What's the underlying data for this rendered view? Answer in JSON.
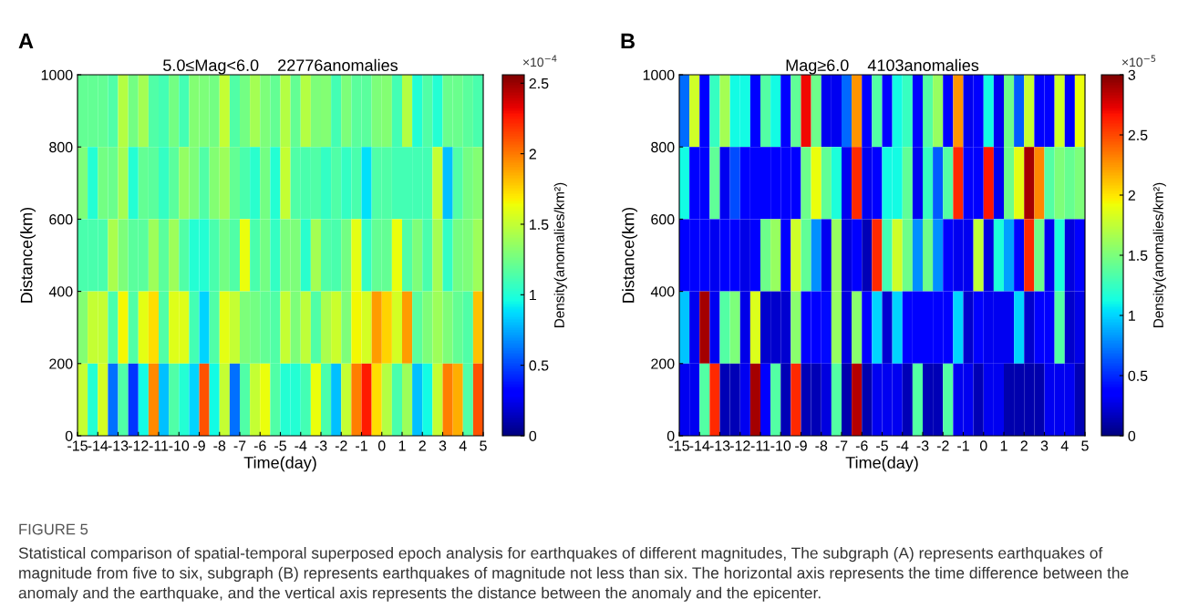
{
  "chart_data": [
    {
      "type": "heatmap",
      "title": "5.0≤Mag<6.0    22776anomalies",
      "xlabel": "Time(day)",
      "ylabel": "Distance(km)",
      "clabel": "Density(anomalies/km²)",
      "annotations": [
        "A",
        "×10$^{−4}$"
      ],
      "x": [
        -14.75,
        -14.25,
        -13.75,
        -13.25,
        -12.75,
        -12.25,
        -11.75,
        -11.25,
        -10.75,
        -10.25,
        -9.75,
        -9.25,
        -8.75,
        -8.25,
        -7.75,
        -7.25,
        -6.75,
        -6.25,
        -5.75,
        -5.25,
        -4.75,
        -4.25,
        -3.75,
        -3.25,
        -2.75,
        -2.25,
        -1.75,
        -1.25,
        -0.75,
        -0.25,
        0.25,
        0.75,
        1.25,
        1.75,
        2.25,
        2.75,
        3.25,
        3.75,
        4.25,
        4.75
      ],
      "xlim": [
        -15,
        5
      ],
      "xticks": [
        -15,
        -14,
        -13,
        -12,
        -11,
        -10,
        -9,
        -8,
        -7,
        -6,
        -5,
        -4,
        -3,
        -2,
        -1,
        0,
        1,
        2,
        3,
        4,
        5
      ],
      "ylim": [
        0,
        1000
      ],
      "yticks": [
        0,
        200,
        400,
        600,
        800,
        1000
      ],
      "clim": [
        0,
        2.56
      ],
      "cticks": [
        0,
        0.5,
        1,
        1.5,
        2,
        2.5
      ],
      "cells": [
        [
          1.2,
          1.2,
          1.2,
          1.15,
          1.45,
          1.25,
          1.4,
          1.15,
          1.1,
          1.25,
          1.1,
          1.3,
          1.28,
          1.25,
          1.5,
          1.15,
          1.25,
          1.4,
          1.28,
          1.2,
          1.45,
          1.2,
          1.45,
          1.28,
          1.3,
          1.1,
          1.28,
          1.18,
          1.18,
          1.28,
          1.3,
          1.1,
          1.45,
          1.0,
          1.15,
          1.0,
          1.22,
          1.22,
          1.18,
          1.12
        ],
        [
          1.28,
          1.0,
          1.25,
          1.22,
          1.4,
          1.0,
          1.2,
          1.18,
          1.05,
          1.18,
          1.35,
          1.28,
          1.15,
          1.3,
          1.38,
          1.2,
          1.12,
          1.02,
          1.25,
          1.0,
          1.5,
          1.15,
          1.12,
          1.15,
          1.05,
          1.15,
          1.05,
          1.12,
          0.88,
          1.15,
          1.15,
          1.1,
          1.1,
          1.1,
          1.1,
          1.5,
          0.8,
          1.15,
          1.25,
          1.3
        ],
        [
          1.12,
          1.12,
          1.12,
          1.42,
          1.28,
          1.18,
          1.18,
          1.38,
          1.18,
          1.38,
          1.15,
          1.0,
          1.0,
          1.12,
          1.25,
          1.15,
          1.62,
          1.12,
          1.25,
          1.05,
          1.28,
          1.28,
          1.02,
          1.4,
          1.15,
          1.12,
          1.25,
          1.6,
          1.05,
          1.2,
          1.2,
          1.62,
          1.15,
          1.28,
          1.12,
          1.4,
          1.05,
          1.25,
          1.28,
          1.38
        ],
        [
          1.3,
          1.5,
          1.5,
          1.12,
          1.65,
          1.15,
          1.6,
          1.72,
          1.15,
          1.58,
          1.58,
          1.1,
          0.85,
          1.15,
          1.6,
          1.5,
          1.28,
          1.25,
          1.2,
          1.15,
          1.5,
          1.28,
          1.48,
          1.15,
          1.42,
          1.52,
          1.28,
          1.65,
          1.55,
          1.9,
          1.75,
          1.55,
          1.9,
          1.18,
          1.28,
          1.38,
          1.28,
          1.2,
          1.15,
          1.8
        ],
        [
          1.5,
          1.0,
          1.55,
          0.6,
          1.15,
          0.45,
          0.95,
          1.95,
          0.8,
          1.15,
          1.0,
          0.85,
          2.1,
          0.95,
          1.5,
          0.6,
          1.15,
          1.5,
          1.62,
          1.15,
          1.0,
          1.0,
          1.1,
          1.62,
          1.12,
          0.8,
          1.5,
          1.98,
          2.25,
          1.72,
          1.45,
          1.12,
          1.38,
          0.8,
          0.95,
          1.5,
          1.98,
          1.85,
          1.15,
          2.1
        ]
      ]
    },
    {
      "type": "heatmap",
      "title": "Mag≥6.0    4103anomalies",
      "xlabel": "Time(day)",
      "ylabel": "Distance(km)",
      "clabel": "Density(anomalies/km²)",
      "annotations": [
        "B",
        "×10$^{−5}$",
        "FIGURE 5",
        "Statistical comparison of spatial-temporal superposed epoch analysis for earthquakes of different magnitudes, The subgraph (A) represents earthquakes of magnitude from five to six, subgraph (B) represents earthquakes of magnitude not less than six. The horizontal axis represents the time difference between the anomaly and the earthquake, and the vertical axis represents the distance between the anomaly and the epicenter."
      ],
      "x": [
        -14.75,
        -14.25,
        -13.75,
        -13.25,
        -12.75,
        -12.25,
        -11.75,
        -11.25,
        -10.75,
        -10.25,
        -9.75,
        -9.25,
        -8.75,
        -8.25,
        -7.75,
        -7.25,
        -6.75,
        -6.25,
        -5.75,
        -5.25,
        -4.75,
        -4.25,
        -3.75,
        -3.25,
        -2.75,
        -2.25,
        -1.75,
        -1.25,
        -0.75,
        -0.25,
        0.25,
        0.75,
        1.25,
        1.75,
        2.25,
        2.75,
        3.25,
        3.75,
        4.25,
        4.75
      ],
      "xlim": [
        -15,
        5
      ],
      "xticks": [
        -15,
        -14,
        -13,
        -12,
        -11,
        -10,
        -9,
        -8,
        -7,
        -6,
        -5,
        -4,
        -3,
        -2,
        -1,
        0,
        1,
        2,
        3,
        4,
        5
      ],
      "ylim": [
        0,
        1000
      ],
      "yticks": [
        0,
        200,
        400,
        600,
        800,
        1000
      ],
      "clim": [
        0,
        3
      ],
      "cticks": [
        0,
        0.5,
        1,
        1.5,
        2,
        2.5,
        3
      ],
      "cells": [
        [
          0.7,
          1.8,
          0.35,
          1.25,
          1.65,
          1.12,
          1.12,
          0.38,
          1.35,
          1.12,
          0.38,
          1.4,
          2.7,
          1.45,
          0.3,
          0.3,
          0.68,
          2.25,
          0.38,
          1.35,
          0.38,
          1.12,
          1.25,
          0.38,
          1.35,
          1.6,
          0.38,
          2.25,
          0.3,
          0.38,
          1.12,
          0.3,
          1.45,
          0.65,
          1.78,
          0.35,
          0.35,
          1.8,
          0.35,
          1.9
        ],
        [
          1.12,
          0.35,
          0.35,
          1.4,
          0.3,
          0.6,
          0.38,
          0.38,
          0.38,
          0.38,
          0.38,
          0.38,
          1.45,
          1.9,
          1.4,
          1.15,
          0.3,
          2.6,
          0.3,
          0.35,
          1.12,
          1.12,
          1.4,
          0.3,
          1.25,
          0.65,
          1.35,
          2.6,
          0.38,
          0.38,
          2.65,
          0.3,
          1.45,
          1.88,
          2.9,
          2.3,
          1.35,
          1.5,
          1.42,
          1.5
        ],
        [
          0.38,
          0.38,
          0.35,
          0.3,
          0.35,
          0.35,
          0.28,
          0.35,
          1.45,
          1.6,
          0.38,
          1.8,
          1.4,
          0.8,
          0.3,
          1.6,
          0.25,
          0.38,
          0.15,
          2.6,
          1.3,
          1.8,
          1.45,
          0.8,
          1.45,
          0.8,
          0.38,
          0.3,
          0.3,
          1.75,
          0.25,
          1.15,
          0.85,
          0.38,
          2.6,
          1.45,
          0.3,
          1.15,
          0.25,
          0.38
        ],
        [
          0.95,
          0.3,
          2.9,
          0.3,
          1.35,
          1.5,
          0.28,
          1.85,
          0.2,
          0.2,
          0.22,
          1.55,
          0.38,
          0.38,
          0.4,
          1.6,
          0.25,
          1.55,
          0.38,
          1.0,
          0.22,
          1.0,
          0.38,
          0.38,
          0.38,
          0.38,
          0.33,
          1.0,
          0.2,
          0.38,
          0.3,
          0.3,
          0.3,
          1.0,
          0.2,
          0.38,
          0.38,
          1.35,
          0.2,
          0.28
        ],
        [
          0.3,
          0.3,
          1.35,
          2.6,
          0.15,
          0.15,
          0.3,
          2.9,
          0.35,
          1.35,
          0.15,
          2.6,
          0.15,
          0.15,
          0.25,
          1.35,
          0.12,
          2.85,
          0.12,
          0.3,
          0.3,
          0.3,
          0.15,
          1.35,
          0.15,
          0.15,
          1.35,
          0.3,
          0.3,
          0.15,
          0.3,
          0.3,
          0.12,
          0.12,
          0.12,
          0.12,
          0.3,
          0.3,
          0.3,
          0.15
        ]
      ]
    }
  ]
}
